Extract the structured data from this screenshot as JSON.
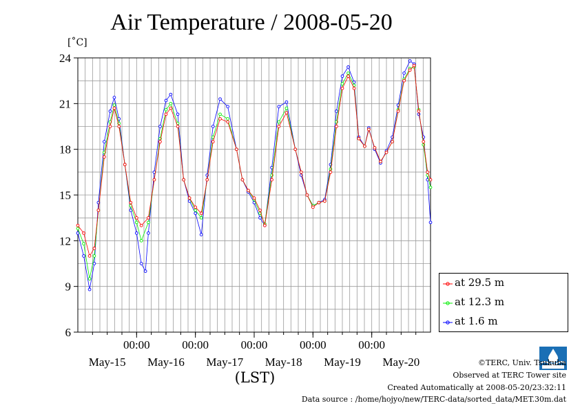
{
  "title": "Air Temperature / 2008-05-20",
  "unit": "[˚C]",
  "xlabel": "(LST)",
  "colors": {
    "s1": "#ff0000",
    "s2": "#00ee00",
    "s3": "#0000ff",
    "logo": "#1a6fb5"
  },
  "legend": [
    "at 29.5 m",
    "at 12.3 m",
    "at 1.6 m"
  ],
  "footer": {
    "copyright": "©TERC, Univ. Tsukuba",
    "observed": "Observed at TERC Tower site",
    "created": "Created Automatically at 2008-05-20/23:32:11",
    "source": "Data source : /home/hojyo/new/TERC-data/sorted_data/MET.30m.dat"
  },
  "chart_data": {
    "type": "line",
    "title": "Air Temperature / 2008-05-20",
    "ylabel": "[˚C]",
    "xlabel": "(LST)",
    "ylim": [
      6,
      24
    ],
    "yticks": [
      "6",
      "9",
      "12",
      "15",
      "18",
      "21",
      "24"
    ],
    "xlim_days": [
      0,
      6
    ],
    "xticks": [
      "00:00",
      "00:00",
      "00:00",
      "00:00",
      "00:00"
    ],
    "day_labels": [
      "May-15",
      "May-16",
      "May-17",
      "May-18",
      "May-19",
      "May-20"
    ],
    "grid": true,
    "legend_position": "right",
    "series": [
      {
        "name": "at 29.5 m",
        "color": "#ff0000",
        "points": [
          [
            0,
            13.0
          ],
          [
            0.1,
            12.5
          ],
          [
            0.2,
            11.0
          ],
          [
            0.28,
            11.5
          ],
          [
            0.35,
            14.0
          ],
          [
            0.45,
            17.5
          ],
          [
            0.55,
            19.5
          ],
          [
            0.62,
            20.7
          ],
          [
            0.7,
            19.5
          ],
          [
            0.8,
            17.0
          ],
          [
            0.9,
            14.5
          ],
          [
            1.0,
            13.5
          ],
          [
            1.08,
            13.0
          ],
          [
            1.2,
            13.5
          ],
          [
            1.3,
            16.0
          ],
          [
            1.4,
            18.5
          ],
          [
            1.5,
            20.3
          ],
          [
            1.58,
            20.7
          ],
          [
            1.7,
            19.5
          ],
          [
            1.8,
            16.0
          ],
          [
            1.9,
            14.8
          ],
          [
            2.0,
            14.2
          ],
          [
            2.1,
            13.8
          ],
          [
            2.2,
            16.0
          ],
          [
            2.3,
            18.5
          ],
          [
            2.42,
            20.0
          ],
          [
            2.55,
            19.8
          ],
          [
            2.7,
            18.0
          ],
          [
            2.8,
            16.0
          ],
          [
            2.9,
            15.3
          ],
          [
            3.0,
            14.8
          ],
          [
            3.1,
            14.0
          ],
          [
            3.18,
            13.0
          ],
          [
            3.3,
            16.0
          ],
          [
            3.42,
            19.5
          ],
          [
            3.55,
            20.4
          ],
          [
            3.7,
            18.0
          ],
          [
            3.8,
            16.5
          ],
          [
            3.9,
            15.0
          ],
          [
            4.0,
            14.2
          ],
          [
            4.1,
            14.5
          ],
          [
            4.2,
            14.6
          ],
          [
            4.3,
            16.5
          ],
          [
            4.4,
            19.5
          ],
          [
            4.5,
            22.0
          ],
          [
            4.6,
            22.8
          ],
          [
            4.7,
            22.0
          ],
          [
            4.78,
            18.7
          ],
          [
            4.88,
            18.2
          ],
          [
            4.95,
            19.3
          ],
          [
            5.05,
            18.1
          ],
          [
            5.15,
            17.2
          ],
          [
            5.25,
            17.8
          ],
          [
            5.35,
            18.5
          ],
          [
            5.45,
            20.5
          ],
          [
            5.55,
            22.5
          ],
          [
            5.65,
            23.2
          ],
          [
            5.72,
            23.5
          ],
          [
            5.8,
            20.5
          ],
          [
            5.88,
            18.5
          ],
          [
            5.95,
            16.5
          ],
          [
            6.0,
            16.0
          ]
        ]
      },
      {
        "name": "at 12.3 m",
        "color": "#00ee00",
        "points": [
          [
            0,
            12.8
          ],
          [
            0.1,
            11.8
          ],
          [
            0.2,
            9.5
          ],
          [
            0.28,
            11.0
          ],
          [
            0.35,
            14.0
          ],
          [
            0.45,
            17.8
          ],
          [
            0.55,
            19.8
          ],
          [
            0.62,
            20.9
          ],
          [
            0.7,
            19.7
          ],
          [
            0.8,
            17.0
          ],
          [
            0.9,
            14.3
          ],
          [
            1.0,
            13.2
          ],
          [
            1.08,
            12.0
          ],
          [
            1.2,
            13.2
          ],
          [
            1.3,
            16.0
          ],
          [
            1.4,
            18.7
          ],
          [
            1.5,
            20.6
          ],
          [
            1.58,
            21.0
          ],
          [
            1.7,
            19.7
          ],
          [
            1.8,
            16.0
          ],
          [
            1.9,
            14.8
          ],
          [
            2.0,
            14.0
          ],
          [
            2.1,
            13.5
          ],
          [
            2.2,
            16.0
          ],
          [
            2.3,
            18.8
          ],
          [
            2.42,
            20.3
          ],
          [
            2.55,
            20.0
          ],
          [
            2.7,
            18.0
          ],
          [
            2.8,
            16.0
          ],
          [
            2.9,
            15.3
          ],
          [
            3.0,
            14.7
          ],
          [
            3.1,
            13.8
          ],
          [
            3.18,
            13.1
          ],
          [
            3.3,
            16.3
          ],
          [
            3.42,
            19.8
          ],
          [
            3.55,
            20.7
          ],
          [
            3.7,
            18.0
          ],
          [
            3.8,
            16.5
          ],
          [
            3.9,
            15.0
          ],
          [
            4.0,
            14.3
          ],
          [
            4.1,
            14.5
          ],
          [
            4.2,
            14.6
          ],
          [
            4.3,
            16.7
          ],
          [
            4.4,
            19.8
          ],
          [
            4.5,
            22.3
          ],
          [
            4.6,
            23.0
          ],
          [
            4.7,
            22.2
          ],
          [
            4.78,
            18.7
          ],
          [
            4.88,
            18.2
          ],
          [
            4.95,
            19.3
          ],
          [
            5.05,
            18.1
          ],
          [
            5.15,
            17.2
          ],
          [
            5.25,
            17.8
          ],
          [
            5.35,
            18.5
          ],
          [
            5.45,
            20.6
          ],
          [
            5.55,
            22.6
          ],
          [
            5.65,
            23.3
          ],
          [
            5.72,
            23.4
          ],
          [
            5.8,
            20.6
          ],
          [
            5.88,
            18.3
          ],
          [
            5.95,
            16.3
          ],
          [
            6.0,
            15.5
          ]
        ]
      },
      {
        "name": "at 1.6 m",
        "color": "#0000ff",
        "points": [
          [
            0,
            12.5
          ],
          [
            0.1,
            11.0
          ],
          [
            0.2,
            8.8
          ],
          [
            0.28,
            10.5
          ],
          [
            0.35,
            14.5
          ],
          [
            0.45,
            18.5
          ],
          [
            0.55,
            20.5
          ],
          [
            0.62,
            21.4
          ],
          [
            0.7,
            20.0
          ],
          [
            0.8,
            17.0
          ],
          [
            0.9,
            14.0
          ],
          [
            1.0,
            12.5
          ],
          [
            1.08,
            10.5
          ],
          [
            1.15,
            10.0
          ],
          [
            1.2,
            12.5
          ],
          [
            1.3,
            16.5
          ],
          [
            1.4,
            19.5
          ],
          [
            1.5,
            21.2
          ],
          [
            1.58,
            21.6
          ],
          [
            1.7,
            20.3
          ],
          [
            1.8,
            16.0
          ],
          [
            1.9,
            14.6
          ],
          [
            2.0,
            13.8
          ],
          [
            2.1,
            12.4
          ],
          [
            2.2,
            16.3
          ],
          [
            2.3,
            19.5
          ],
          [
            2.42,
            21.3
          ],
          [
            2.55,
            20.8
          ],
          [
            2.7,
            18.0
          ],
          [
            2.8,
            16.0
          ],
          [
            2.9,
            15.2
          ],
          [
            3.0,
            14.5
          ],
          [
            3.1,
            13.5
          ],
          [
            3.18,
            13.0
          ],
          [
            3.3,
            16.8
          ],
          [
            3.42,
            20.8
          ],
          [
            3.55,
            21.1
          ],
          [
            3.7,
            18.0
          ],
          [
            3.8,
            16.3
          ],
          [
            3.9,
            15.0
          ],
          [
            4.0,
            14.3
          ],
          [
            4.1,
            14.5
          ],
          [
            4.2,
            14.7
          ],
          [
            4.3,
            17.0
          ],
          [
            4.4,
            20.5
          ],
          [
            4.5,
            22.8
          ],
          [
            4.6,
            23.4
          ],
          [
            4.7,
            22.4
          ],
          [
            4.78,
            18.8
          ],
          [
            4.88,
            18.2
          ],
          [
            4.95,
            19.4
          ],
          [
            5.05,
            18.0
          ],
          [
            5.15,
            17.1
          ],
          [
            5.25,
            17.9
          ],
          [
            5.35,
            18.8
          ],
          [
            5.45,
            20.9
          ],
          [
            5.55,
            23.0
          ],
          [
            5.65,
            23.8
          ],
          [
            5.72,
            23.6
          ],
          [
            5.8,
            20.3
          ],
          [
            5.88,
            18.8
          ],
          [
            5.95,
            16.0
          ],
          [
            6.0,
            13.2
          ]
        ]
      }
    ]
  }
}
